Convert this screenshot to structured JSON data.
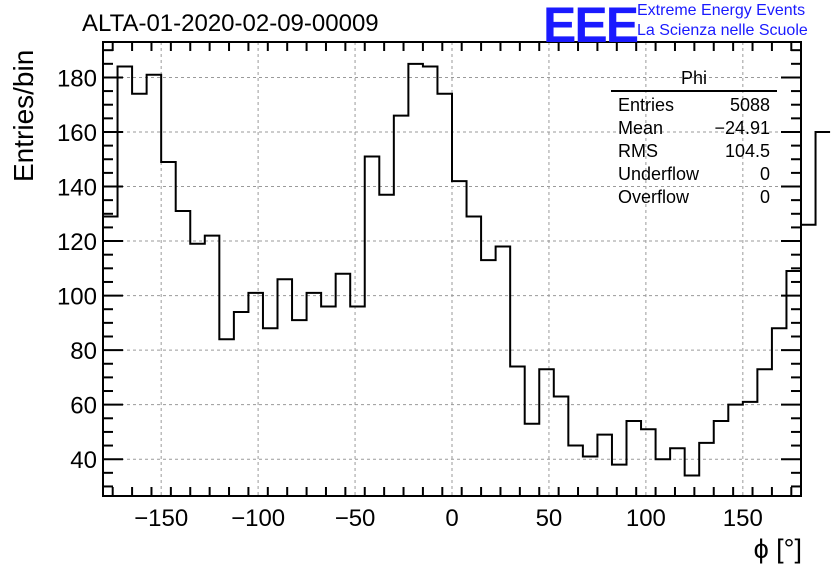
{
  "header": {
    "title": "ALTA-01-2020-02-09-00009",
    "logo_text": "EEE",
    "logo_line1": "Extreme Energy Events",
    "logo_line2": "La Scienza nelle Scuole"
  },
  "stats_box": {
    "title": "Phi",
    "rows": [
      {
        "label": "Entries",
        "value": "5088"
      },
      {
        "label": "Mean",
        "value": "−24.91"
      },
      {
        "label": "RMS",
        "value": "104.5"
      },
      {
        "label": "Underflow",
        "value": "0"
      },
      {
        "label": "Overflow",
        "value": "0"
      }
    ]
  },
  "chart_data": {
    "type": "histogram",
    "title": "ALTA-01-2020-02-09-00009",
    "xlabel": "ϕ [°]",
    "ylabel": "Entries/bin",
    "xlim": [
      -180,
      180
    ],
    "ylim": [
      26.5,
      193
    ],
    "xticks": [
      -150,
      -100,
      -50,
      0,
      50,
      100,
      150
    ],
    "xtick_labels": [
      "−150",
      "−100",
      "−50",
      "0",
      "50",
      "100",
      "150"
    ],
    "yticks": [
      40,
      60,
      80,
      100,
      120,
      140,
      160,
      180
    ],
    "grid": true,
    "bin_width": 7.5,
    "bin_edges_start": -180,
    "values": [
      129,
      184,
      174,
      181,
      149,
      131,
      119,
      122,
      84,
      94,
      101,
      88,
      106,
      91,
      101,
      96,
      108,
      96,
      151,
      137,
      166,
      185,
      184,
      174,
      142,
      129,
      113,
      118,
      74,
      53,
      73,
      63,
      45,
      41,
      49,
      38,
      54,
      51,
      40,
      44,
      34,
      46,
      54,
      60,
      61,
      73,
      88,
      109,
      126,
      160
    ]
  }
}
